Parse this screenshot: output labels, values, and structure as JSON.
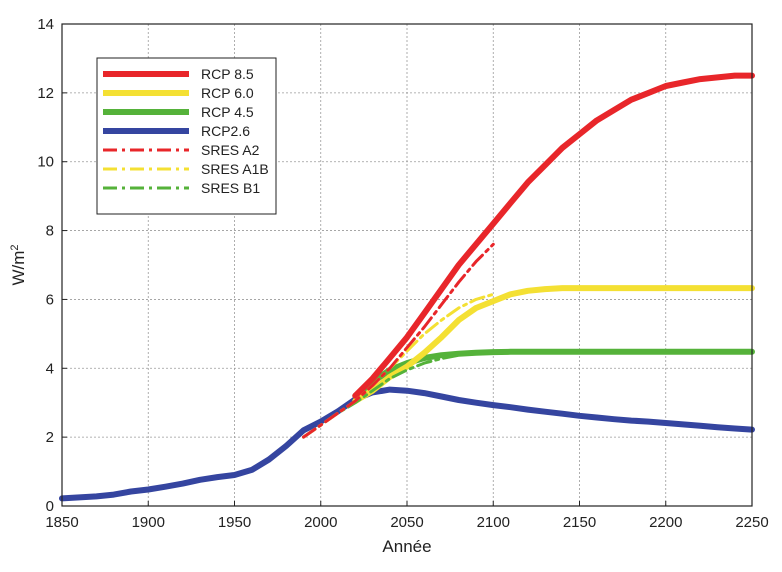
{
  "chart_data": {
    "type": "line",
    "title": "",
    "xlabel": "Année",
    "ylabel": "W/m",
    "ylabel_superscript": "2",
    "xlim": [
      1850,
      2250
    ],
    "ylim": [
      0,
      14
    ],
    "xticks": [
      "1850",
      "1900",
      "1950",
      "2000",
      "2050",
      "2100",
      "2150",
      "2200",
      "2250"
    ],
    "yticks": [
      "0",
      "2",
      "4",
      "6",
      "8",
      "10",
      "12",
      "14"
    ],
    "grid": true,
    "legend_position": "top-left",
    "series": [
      {
        "name": "RCP 8.5",
        "color": "#e8262a",
        "style": "solid",
        "x": [
          2020,
          2030,
          2040,
          2050,
          2060,
          2070,
          2080,
          2090,
          2100,
          2110,
          2120,
          2130,
          2140,
          2150,
          2160,
          2170,
          2180,
          2190,
          2200,
          2210,
          2220,
          2230,
          2240,
          2250
        ],
        "y": [
          3.2,
          3.7,
          4.3,
          4.9,
          5.6,
          6.3,
          7.0,
          7.6,
          8.2,
          8.8,
          9.4,
          9.9,
          10.4,
          10.8,
          11.2,
          11.5,
          11.8,
          12.0,
          12.2,
          12.3,
          12.4,
          12.45,
          12.5,
          12.5
        ]
      },
      {
        "name": "RCP 6.0",
        "color": "#f4e033",
        "style": "solid",
        "x": [
          2020,
          2030,
          2040,
          2050,
          2060,
          2070,
          2080,
          2090,
          2100,
          2110,
          2120,
          2130,
          2140,
          2150,
          2170,
          2200,
          2250
        ],
        "y": [
          3.05,
          3.35,
          3.75,
          4.05,
          4.45,
          4.9,
          5.4,
          5.75,
          5.95,
          6.15,
          6.25,
          6.3,
          6.33,
          6.33,
          6.33,
          6.33,
          6.33
        ]
      },
      {
        "name": "RCP 4.5",
        "color": "#55b23a",
        "style": "solid",
        "x": [
          2020,
          2030,
          2040,
          2050,
          2060,
          2070,
          2080,
          2090,
          2100,
          2110,
          2120,
          2150,
          2200,
          2250
        ],
        "y": [
          3.2,
          3.6,
          3.95,
          4.15,
          4.3,
          4.38,
          4.42,
          4.45,
          4.47,
          4.48,
          4.48,
          4.48,
          4.48,
          4.48
        ]
      },
      {
        "name": "RCP2.6",
        "color": "#3545a0",
        "style": "solid",
        "x": [
          1850,
          1860,
          1870,
          1880,
          1890,
          1900,
          1910,
          1920,
          1930,
          1940,
          1950,
          1960,
          1970,
          1980,
          1990,
          2000,
          2010,
          2020,
          2030,
          2040,
          2050,
          2060,
          2070,
          2080,
          2090,
          2100,
          2110,
          2120,
          2130,
          2140,
          2150,
          2160,
          2170,
          2180,
          2190,
          2200,
          2210,
          2220,
          2230,
          2240,
          2250
        ],
        "y": [
          0.22,
          0.25,
          0.28,
          0.33,
          0.42,
          0.48,
          0.56,
          0.65,
          0.76,
          0.84,
          0.9,
          1.05,
          1.35,
          1.75,
          2.2,
          2.45,
          2.75,
          3.1,
          3.3,
          3.38,
          3.35,
          3.28,
          3.18,
          3.08,
          3.0,
          2.93,
          2.87,
          2.8,
          2.74,
          2.68,
          2.62,
          2.57,
          2.52,
          2.48,
          2.45,
          2.41,
          2.37,
          2.33,
          2.29,
          2.25,
          2.22
        ]
      },
      {
        "name": "SRES A2",
        "color": "#e8262a",
        "style": "dashdot",
        "x": [
          1990,
          2000,
          2010,
          2020,
          2030,
          2040,
          2050,
          2060,
          2070,
          2080,
          2090,
          2100
        ],
        "y": [
          2.0,
          2.35,
          2.7,
          3.05,
          3.5,
          4.0,
          4.6,
          5.2,
          5.85,
          6.5,
          7.1,
          7.6
        ]
      },
      {
        "name": "SRES A1B",
        "color": "#f4e033",
        "style": "dashdot",
        "x": [
          1990,
          2000,
          2010,
          2020,
          2030,
          2040,
          2050,
          2060,
          2070,
          2080,
          2090,
          2100
        ],
        "y": [
          2.0,
          2.35,
          2.7,
          3.05,
          3.5,
          4.0,
          4.5,
          5.0,
          5.4,
          5.75,
          6.0,
          6.15
        ]
      },
      {
        "name": "SRES B1",
        "color": "#55b23a",
        "style": "dashdot",
        "x": [
          1990,
          2000,
          2010,
          2020,
          2030,
          2040,
          2050,
          2060,
          2070,
          2080,
          2090,
          2100
        ],
        "y": [
          2.0,
          2.35,
          2.7,
          3.0,
          3.35,
          3.7,
          3.95,
          4.15,
          4.28,
          4.38,
          4.45,
          4.5
        ]
      }
    ]
  }
}
